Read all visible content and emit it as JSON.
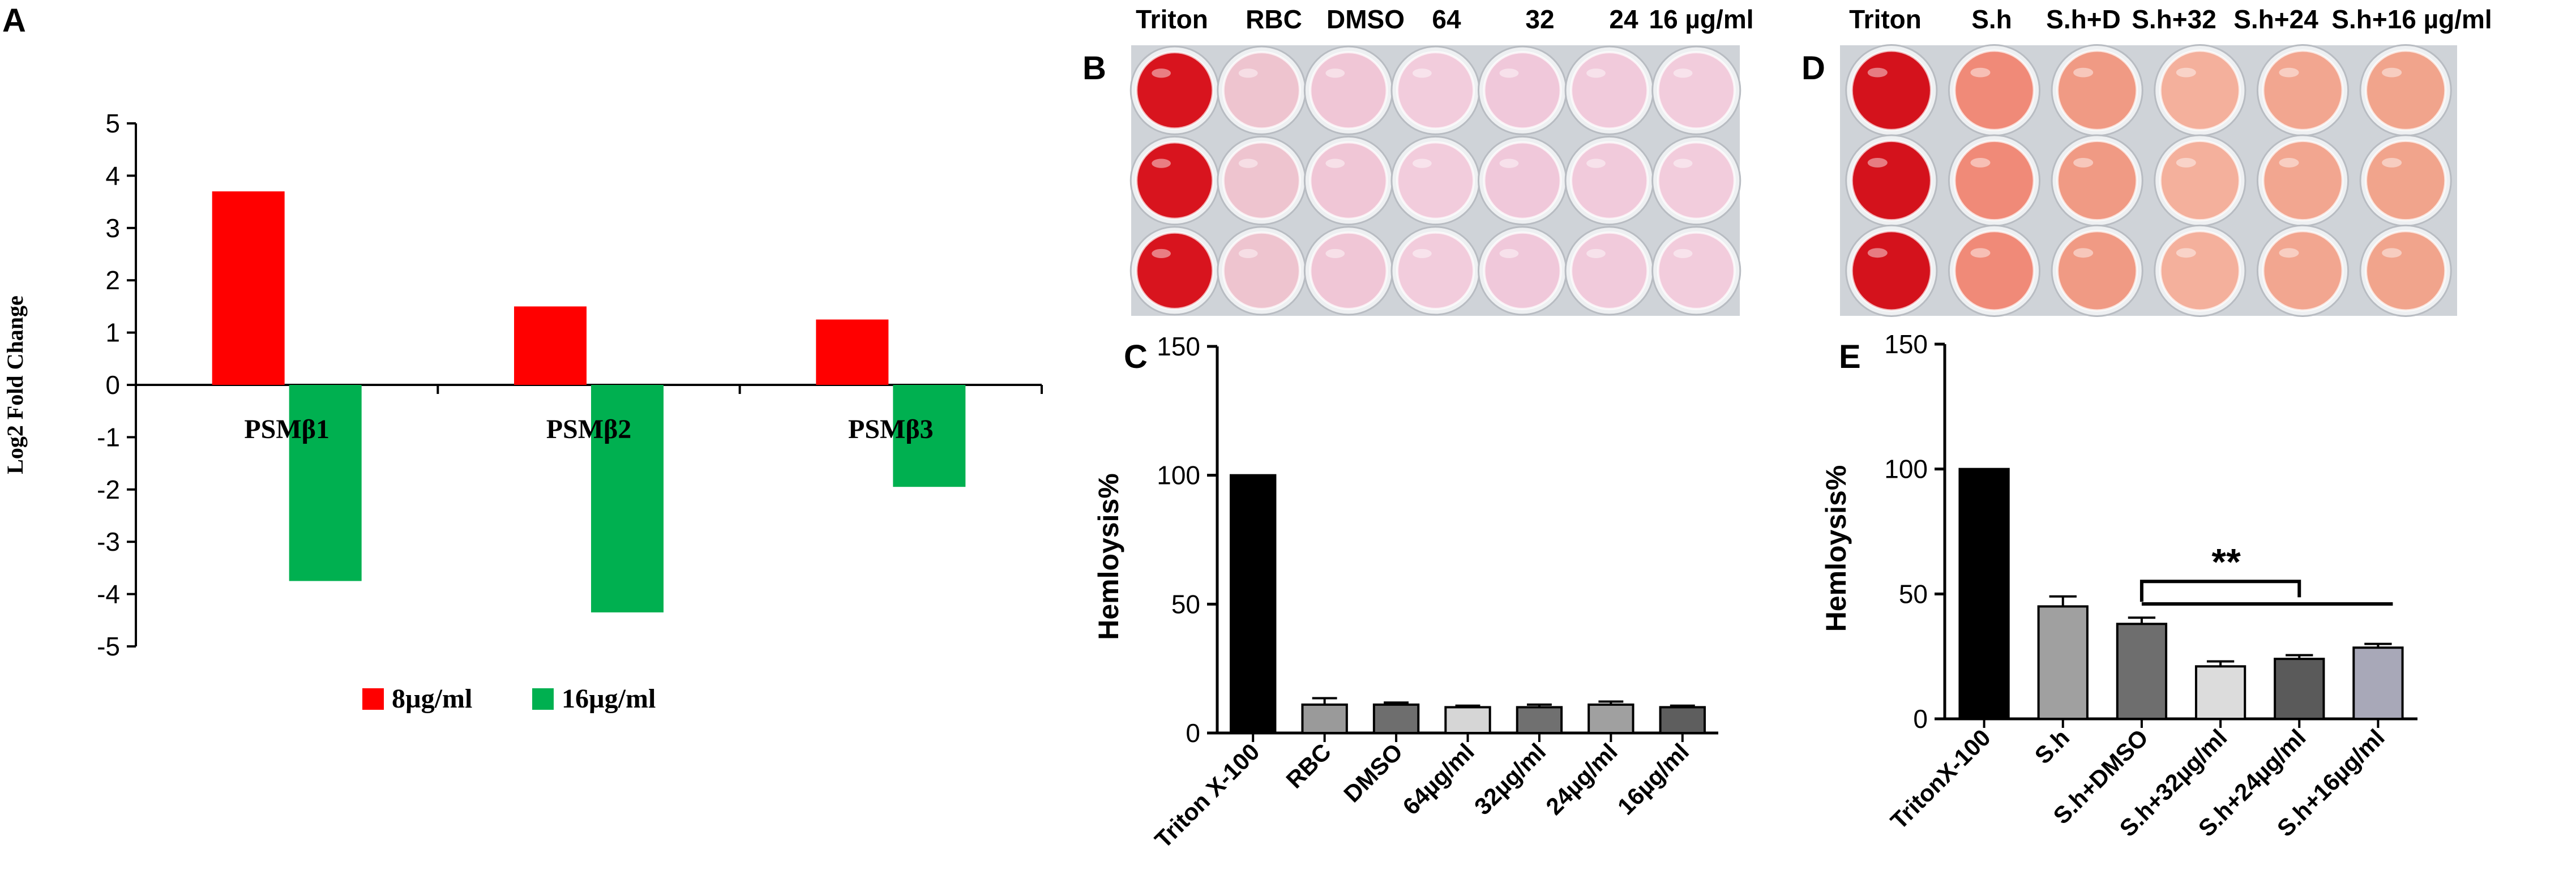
{
  "panel_letters": [
    "A",
    "B",
    "C",
    "D",
    "E"
  ],
  "photo_b": {
    "header": [
      "Triton",
      "RBC",
      "DMSO",
      "64",
      "32",
      "24",
      "16 µg/ml"
    ],
    "rows": 3,
    "well_colors": [
      "#d8141e",
      "#eec4cf",
      "#f0c6d6",
      "#f2ccdc",
      "#f0c8da",
      "#f1cadb",
      "#f2ccdc"
    ]
  },
  "photo_d": {
    "header": [
      "Triton",
      "S.h",
      "S.h+D",
      "S.h+32",
      "S.h+24",
      "S.h+16 µg/ml"
    ],
    "rows": 3,
    "well_colors": [
      "#d4121c",
      "#f08a78",
      "#f09a84",
      "#f4b09c",
      "#f2a690",
      "#f1a48c"
    ]
  },
  "chart_data": [
    {
      "panel": "A",
      "type": "bar",
      "categories": [
        "PSMβ1",
        "PSMβ2",
        "PSMβ3"
      ],
      "series": [
        {
          "name": "8µg/ml",
          "color": "#ff0000",
          "values": [
            3.7,
            1.5,
            1.25
          ]
        },
        {
          "name": "16µg/ml",
          "color": "#00b050",
          "values": [
            -3.75,
            -4.35,
            -1.95
          ]
        }
      ],
      "ylabel": "Log2 Fold Change",
      "ylim": [
        -5,
        5
      ],
      "yticks": [
        5,
        4,
        3,
        2,
        1,
        0,
        -1,
        -2,
        -3,
        -4,
        -5
      ],
      "grid": false,
      "legend": "bottom"
    },
    {
      "panel": "C",
      "type": "bar",
      "categories": [
        "Triton X-100",
        "RBC",
        "DMSO",
        "64µg/ml",
        "32µg/ml",
        "24µg/ml",
        "16µg/ml"
      ],
      "values": [
        100,
        11,
        11,
        10,
        10,
        11,
        10
      ],
      "errors": [
        0,
        2.5,
        0.8,
        0.6,
        1.0,
        1.2,
        0.6
      ],
      "bar_colors": [
        "#000000",
        "#9a9a9a",
        "#6e6e6e",
        "#d6d6d6",
        "#707070",
        "#a0a0a0",
        "#5e5e5e"
      ],
      "ylabel": "Hemloysis%",
      "ylim": [
        0,
        150
      ],
      "yticks": [
        0,
        50,
        100,
        150
      ],
      "grid": false
    },
    {
      "panel": "E",
      "type": "bar",
      "categories": [
        "TritonX-100",
        "S.h",
        "S.h+DMSO",
        "S.h+32µg/ml",
        "S.h+24µg/ml",
        "S.h+16µg/ml"
      ],
      "values": [
        100,
        45,
        38,
        21,
        24,
        28.5
      ],
      "errors": [
        0,
        4,
        2.5,
        2,
        1.5,
        1.5
      ],
      "bar_colors": [
        "#000000",
        "#a0a0a0",
        "#6e6e6e",
        "#dcdcdc",
        "#5a5a5a",
        "#a8a8b8"
      ],
      "ylabel": "Hemloysis%",
      "ylim": [
        0,
        150
      ],
      "yticks": [
        0,
        50,
        100,
        150
      ],
      "grid": false,
      "annotation": "**"
    }
  ]
}
